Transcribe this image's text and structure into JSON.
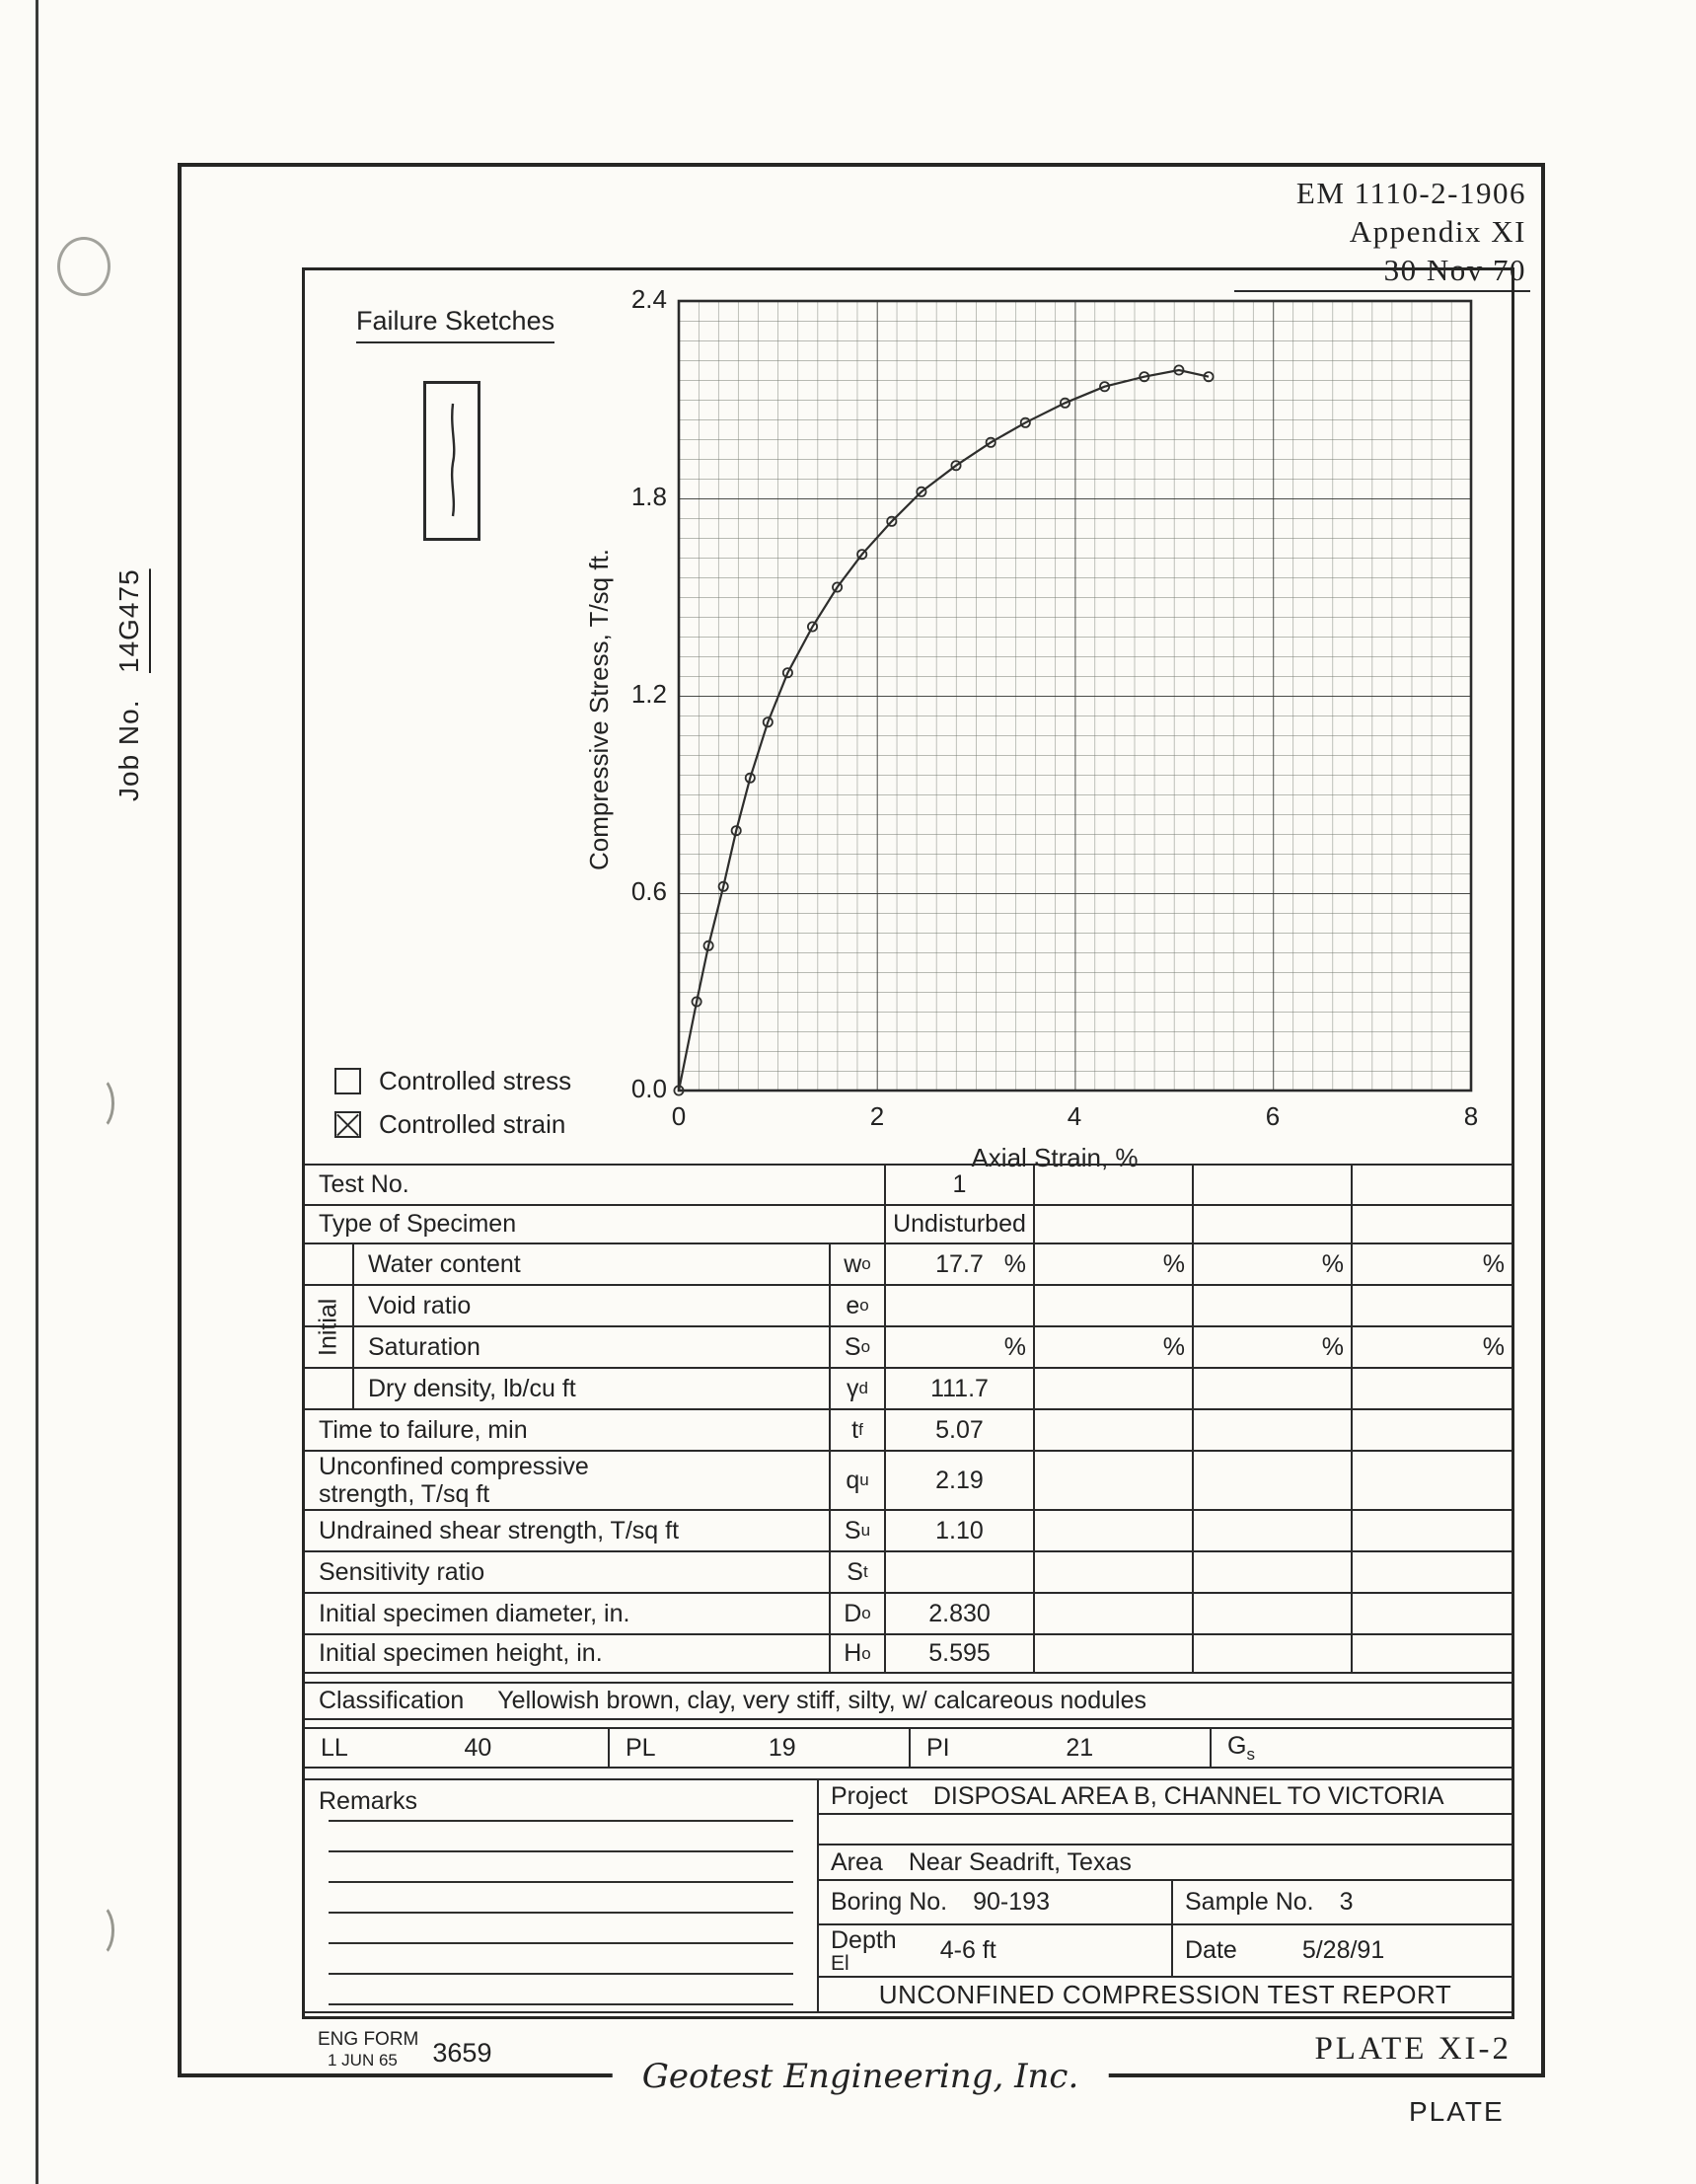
{
  "header": {
    "doc_ref": "EM 1110-2-1906",
    "appendix": "Appendix XI",
    "date": "30 Nov 70"
  },
  "margin": {
    "job_no_label": "Job No.",
    "job_no_value": "14G475"
  },
  "failure_sketches": {
    "title": "Failure Sketches"
  },
  "legend": {
    "controlled_stress": "Controlled stress",
    "controlled_strain": "Controlled strain"
  },
  "chart_data": {
    "type": "line",
    "title": "",
    "xlabel": "Axial Strain, %",
    "ylabel": "Compressive Stress, T/sq ft.",
    "xlim": [
      0,
      8
    ],
    "ylim": [
      0,
      2.4
    ],
    "x_tick_labels": [
      "0",
      "2",
      "4",
      "6",
      "8"
    ],
    "y_tick_labels": [
      "2.4",
      "1.8",
      "1.2",
      "0.6",
      "0.0"
    ],
    "grid": "fine square grid, 10 minor divisions per major; major every 2% strain and 0.6 T/sq ft",
    "legend_position": "none",
    "series": [
      {
        "name": "Test No. 1 (undisturbed) stress-strain curve",
        "marker": "open-circle",
        "x": [
          0,
          0.18,
          0.3,
          0.45,
          0.58,
          0.72,
          0.9,
          1.1,
          1.35,
          1.6,
          1.85,
          2.15,
          2.45,
          2.8,
          3.15,
          3.5,
          3.9,
          4.3,
          4.7,
          5.05,
          5.35
        ],
        "y": [
          0,
          0.27,
          0.44,
          0.62,
          0.79,
          0.95,
          1.12,
          1.27,
          1.41,
          1.53,
          1.63,
          1.73,
          1.82,
          1.9,
          1.97,
          2.03,
          2.09,
          2.14,
          2.17,
          2.19,
          2.17
        ]
      }
    ]
  },
  "table": {
    "test_no": {
      "label": "Test No.",
      "values": [
        "1",
        "",
        "",
        ""
      ]
    },
    "specimen": {
      "label": "Type of Specimen",
      "values": [
        "Undisturbed",
        "",
        "",
        ""
      ]
    },
    "group_label": "Initial",
    "water_content": {
      "label": "Water content",
      "sym": "w",
      "sub": "o",
      "values": [
        "17.7",
        "",
        "",
        ""
      ],
      "units": [
        "%",
        "%",
        "%",
        "%"
      ]
    },
    "void_ratio": {
      "label": "Void ratio",
      "sym": "e",
      "sub": "o",
      "values": [
        "",
        "",
        "",
        ""
      ]
    },
    "saturation": {
      "label": "Saturation",
      "sym": "S",
      "sub": "o",
      "values": [
        "",
        "",
        "",
        ""
      ],
      "units": [
        "%",
        "%",
        "%",
        "%"
      ]
    },
    "dry_density": {
      "label": "Dry density, lb/cu ft",
      "sym": "γ",
      "sub": "d",
      "values": [
        "111.7",
        "",
        "",
        ""
      ]
    },
    "time_to_failure": {
      "label": "Time to failure, min",
      "sym": "t",
      "sub": "f",
      "values": [
        "5.07",
        "",
        "",
        ""
      ]
    },
    "unconfined_strength": {
      "label": "Unconfined compressive strength, T/sq ft",
      "sym": "q",
      "sub": "u",
      "values": [
        "2.19",
        "",
        "",
        ""
      ]
    },
    "undrained_strength": {
      "label": "Undrained shear strength, T/sq ft",
      "sym": "S",
      "sub": "u",
      "values": [
        "1.10",
        "",
        "",
        ""
      ]
    },
    "sensitivity": {
      "label": "Sensitivity ratio",
      "sym": "S",
      "sub": "t",
      "values": [
        "",
        "",
        "",
        ""
      ]
    },
    "diameter": {
      "label": "Initial specimen diameter, in.",
      "sym": "D",
      "sub": "o",
      "values": [
        "2.830",
        "",
        "",
        ""
      ]
    },
    "height": {
      "label": "Initial specimen height, in.",
      "sym": "H",
      "sub": "o",
      "values": [
        "5.595",
        "",
        "",
        ""
      ]
    }
  },
  "classification": {
    "label": "Classification",
    "value": "Yellowish brown, clay, very stiff, silty, w/ calcareous nodules"
  },
  "atterberg": {
    "ll_label": "LL",
    "ll": "40",
    "pl_label": "PL",
    "pl": "19",
    "pi_label": "PI",
    "pi": "21",
    "gs_sym": "G",
    "gs_sub": "s",
    "gs": ""
  },
  "remarks": {
    "label": "Remarks"
  },
  "project": {
    "project_label": "Project",
    "project": "DISPOSAL AREA B, CHANNEL TO VICTORIA",
    "area_label": "Area",
    "area": "Near Seadrift, Texas",
    "boring_label": "Boring No.",
    "boring": "90-193",
    "sample_label": "Sample No.",
    "sample": "3",
    "depth_label": "Depth",
    "el_label": "El",
    "depth": "4-6 ft",
    "date_label": "Date",
    "date": "5/28/91",
    "report_title": "UNCONFINED COMPRESSION TEST REPORT"
  },
  "footer": {
    "eng_form_line1": "ENG FORM",
    "eng_form_line2": "1 JUN 65",
    "form_number": "3659",
    "plate": "PLATE XI-2",
    "company": "Geotest Engineering, Inc.",
    "corner": "PLATE"
  },
  "colors": {
    "ink": "#262624",
    "paper": "#fcfbf7"
  }
}
